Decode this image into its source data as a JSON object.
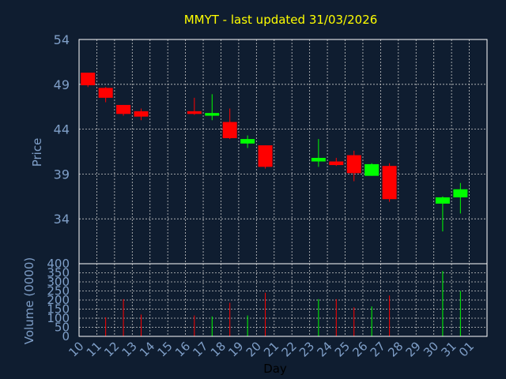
{
  "chart_data": [
    {
      "type": "candlestick",
      "title": "MMYT - last updated 31/03/2026",
      "ylabel": "Price",
      "ylim": [
        29,
        54
      ],
      "yticks": [
        34,
        39,
        44,
        49,
        54
      ],
      "grid": true,
      "colors": {
        "up": "#00ff00",
        "down": "#ff0000",
        "title": "#ffff00",
        "axis_text": "#7f9fc8",
        "grid": "#c8c8c8",
        "background": "#0f1d30",
        "frame": "#ffffff"
      },
      "candles": [
        {
          "day": 10,
          "open": 50.3,
          "high": 50.3,
          "low": 48.7,
          "close": 48.9
        },
        {
          "day": 11,
          "open": 48.6,
          "high": 48.7,
          "low": 47.0,
          "close": 47.5
        },
        {
          "day": 12,
          "open": 46.7,
          "high": 46.7,
          "low": 45.5,
          "close": 45.7
        },
        {
          "day": 13,
          "open": 46.0,
          "high": 46.3,
          "low": 45.0,
          "close": 45.4
        },
        {
          "day": 16,
          "open": 46.0,
          "high": 47.5,
          "low": 45.6,
          "close": 45.7
        },
        {
          "day": 17,
          "open": 45.5,
          "high": 47.9,
          "low": 45.0,
          "close": 45.8
        },
        {
          "day": 18,
          "open": 44.8,
          "high": 46.3,
          "low": 42.9,
          "close": 43.0
        },
        {
          "day": 19,
          "open": 42.4,
          "high": 43.3,
          "low": 41.9,
          "close": 42.9
        },
        {
          "day": 20,
          "open": 42.2,
          "high": 42.2,
          "low": 39.6,
          "close": 39.8
        },
        {
          "day": 23,
          "open": 40.4,
          "high": 42.9,
          "low": 39.8,
          "close": 40.8
        },
        {
          "day": 24,
          "open": 40.4,
          "high": 40.8,
          "low": 39.9,
          "close": 40.0
        },
        {
          "day": 25,
          "open": 41.1,
          "high": 41.6,
          "low": 38.2,
          "close": 39.1
        },
        {
          "day": 26,
          "open": 38.8,
          "high": 40.2,
          "low": 38.8,
          "close": 40.1
        },
        {
          "day": 27,
          "open": 39.9,
          "high": 40.2,
          "low": 35.9,
          "close": 36.2
        },
        {
          "day": 30,
          "open": 35.7,
          "high": 36.5,
          "low": 32.6,
          "close": 36.4
        },
        {
          "day": 31,
          "open": 36.4,
          "high": 38.0,
          "low": 34.6,
          "close": 37.3
        }
      ]
    },
    {
      "type": "bar",
      "ylabel": "Volume (0000)",
      "xlabel": "Day",
      "ylim": [
        0,
        400
      ],
      "yticks": [
        0,
        50,
        100,
        150,
        200,
        250,
        300,
        350,
        400
      ],
      "categories": [
        "10",
        "11",
        "12",
        "13",
        "14",
        "15",
        "16",
        "17",
        "18",
        "19",
        "20",
        "21",
        "22",
        "23",
        "24",
        "25",
        "26",
        "27",
        "28",
        "29",
        "30",
        "31",
        "01"
      ],
      "volumes": [
        {
          "day": 10,
          "value": 0,
          "direction": "down"
        },
        {
          "day": 11,
          "value": 105,
          "direction": "down"
        },
        {
          "day": 12,
          "value": 205,
          "direction": "down"
        },
        {
          "day": 13,
          "value": 120,
          "direction": "down"
        },
        {
          "day": 16,
          "value": 115,
          "direction": "down"
        },
        {
          "day": 17,
          "value": 110,
          "direction": "up"
        },
        {
          "day": 18,
          "value": 185,
          "direction": "down"
        },
        {
          "day": 19,
          "value": 115,
          "direction": "up"
        },
        {
          "day": 20,
          "value": 240,
          "direction": "down"
        },
        {
          "day": 23,
          "value": 205,
          "direction": "up"
        },
        {
          "day": 24,
          "value": 205,
          "direction": "down"
        },
        {
          "day": 25,
          "value": 160,
          "direction": "down"
        },
        {
          "day": 26,
          "value": 165,
          "direction": "up"
        },
        {
          "day": 27,
          "value": 225,
          "direction": "down"
        },
        {
          "day": 30,
          "value": 360,
          "direction": "up"
        },
        {
          "day": 31,
          "value": 250,
          "direction": "up"
        }
      ]
    }
  ]
}
